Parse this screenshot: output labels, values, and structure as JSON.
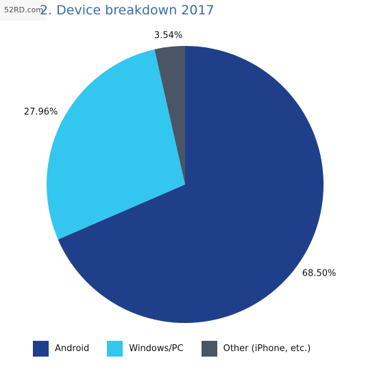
{
  "watermark": "52RD.com",
  "title": "2. Device breakdown 2017",
  "chart_data": {
    "type": "pie",
    "categories": [
      "Android",
      "Windows/PC",
      "Other (iPhone, etc.)"
    ],
    "values": [
      68.5,
      27.96,
      3.54
    ],
    "labels": [
      "68.50%",
      "27.96%",
      "3.54%"
    ],
    "colors": [
      "#1f3f8a",
      "#33c6ef",
      "#4a5565"
    ],
    "legend_position": "bottom"
  }
}
